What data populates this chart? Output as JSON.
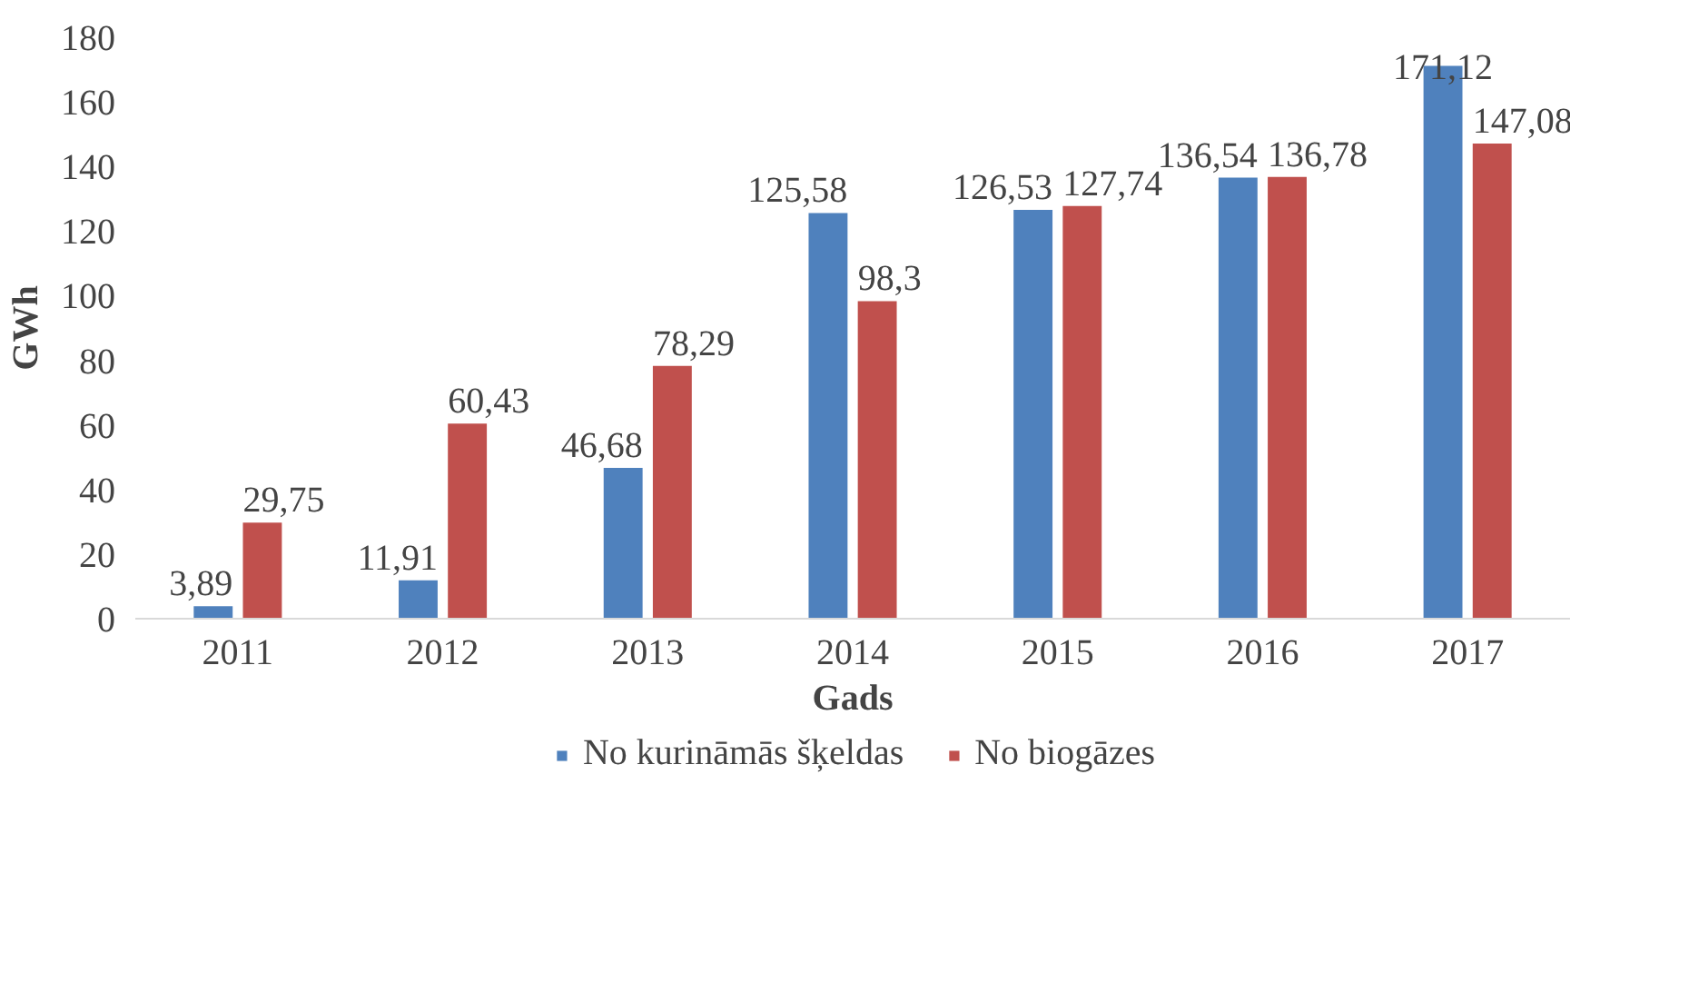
{
  "chart_data": {
    "type": "bar",
    "xlabel": "Gads",
    "ylabel": "GWh",
    "categories": [
      "2011",
      "2012",
      "2013",
      "2014",
      "2015",
      "2016",
      "2017"
    ],
    "series": [
      {
        "name": "No kurināmās šķeldas",
        "color": "#4f81bd",
        "values": [
          3.89,
          11.91,
          46.68,
          125.58,
          126.53,
          136.54,
          171.12
        ],
        "value_labels": [
          "3,89",
          "11,91",
          "46,68",
          "125,58",
          "126,53",
          "136,54",
          "171,12"
        ]
      },
      {
        "name": "No biogāzes",
        "color": "#c0504d",
        "values": [
          29.75,
          60.43,
          78.29,
          98.3,
          127.74,
          136.78,
          147.08
        ],
        "value_labels": [
          "29,75",
          "60,43",
          "78,29",
          "98,3",
          "127,74",
          "136,78",
          "147,08"
        ]
      }
    ],
    "ylim": [
      0,
      180
    ],
    "yticks": [
      0,
      20,
      40,
      60,
      80,
      100,
      120,
      140,
      160,
      180
    ],
    "grid": false,
    "legend": "bottom"
  }
}
